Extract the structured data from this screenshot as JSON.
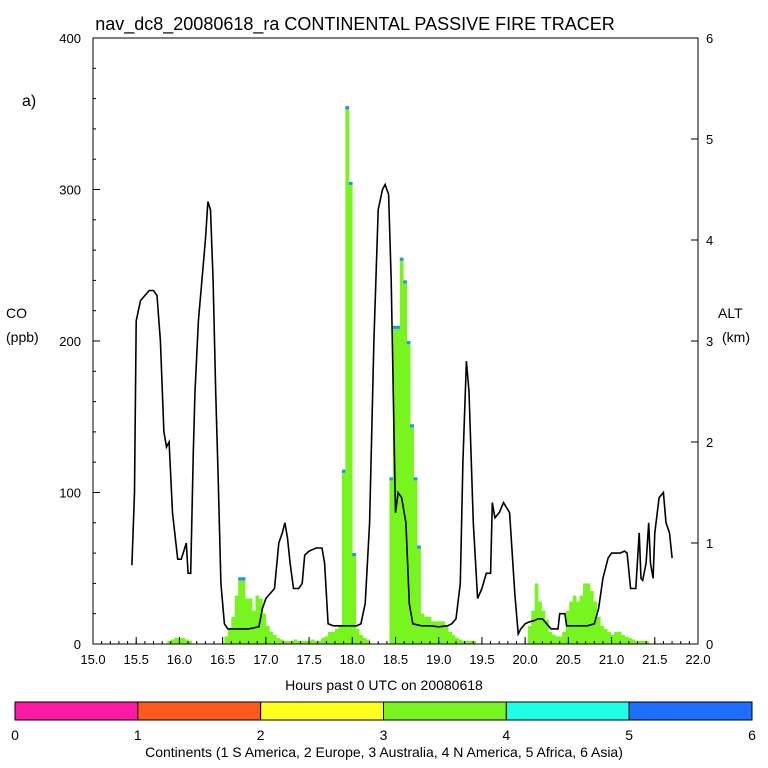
{
  "chart_data": {
    "type": "bar",
    "title": "nav_dc8_20080618_ra CONTINENTAL PASSIVE FIRE TRACER",
    "panel_label": "a)",
    "xlabel": "Hours past 0 UTC on 20080618",
    "ylabel_left_line1": "CO",
    "ylabel_left_line2": "(ppb)",
    "ylabel_right_line1": "ALT",
    "ylabel_right_line2": "(km)",
    "xlim": [
      15.0,
      22.0
    ],
    "ylim_left": [
      0,
      400
    ],
    "ylim_right": [
      0,
      6
    ],
    "x_ticks": [
      "15.0",
      "15.5",
      "16.0",
      "16.5",
      "17.0",
      "17.5",
      "18.0",
      "18.5",
      "19.0",
      "19.5",
      "20.0",
      "20.5",
      "21.0",
      "21.5",
      "22.0"
    ],
    "y_left_ticks": [
      "0",
      "100",
      "200",
      "300",
      "400"
    ],
    "y_right_ticks": [
      "0",
      "1",
      "2",
      "3",
      "4",
      "5",
      "6"
    ],
    "bar_width_hours": 0.04,
    "co_bars_x": [
      15.88,
      15.92,
      15.96,
      16.0,
      16.04,
      16.08,
      16.12,
      16.54,
      16.58,
      16.62,
      16.66,
      16.7,
      16.74,
      16.78,
      16.82,
      16.86,
      16.9,
      16.94,
      16.98,
      17.02,
      17.06,
      17.1,
      17.14,
      17.18,
      17.22,
      17.26,
      17.3,
      17.34,
      17.38,
      17.42,
      17.46,
      17.5,
      17.54,
      17.58,
      17.62,
      17.66,
      17.7,
      17.74,
      17.78,
      17.82,
      17.86,
      17.9,
      17.94,
      17.98,
      18.02,
      18.06,
      18.1,
      18.14,
      18.18,
      18.45,
      18.49,
      18.53,
      18.57,
      18.61,
      18.65,
      18.69,
      18.73,
      18.77,
      18.81,
      18.85,
      18.89,
      18.93,
      18.97,
      19.01,
      19.05,
      19.09,
      19.13,
      19.17,
      19.21,
      19.25,
      19.29,
      19.33,
      19.37,
      19.41,
      20.05,
      20.09,
      20.13,
      20.17,
      20.21,
      20.25,
      20.29,
      20.33,
      20.37,
      20.41,
      20.45,
      20.49,
      20.53,
      20.57,
      20.61,
      20.65,
      20.69,
      20.73,
      20.77,
      20.81,
      20.85,
      20.89,
      20.93,
      20.97,
      21.01,
      21.05,
      21.09,
      21.13,
      21.17,
      21.21,
      21.25,
      21.29,
      21.33,
      21.37,
      21.41
    ],
    "co_bars_y": [
      2,
      3,
      4,
      4,
      4,
      3,
      2,
      5,
      10,
      18,
      32,
      44,
      44,
      30,
      30,
      22,
      32,
      30,
      20,
      12,
      8,
      6,
      4,
      3,
      2,
      2,
      2,
      3,
      2,
      2,
      2,
      2,
      3,
      2,
      2,
      4,
      5,
      8,
      8,
      10,
      12,
      115,
      355,
      305,
      60,
      10,
      6,
      4,
      3,
      110,
      210,
      210,
      255,
      240,
      200,
      145,
      110,
      65,
      20,
      18,
      18,
      15,
      15,
      15,
      15,
      12,
      8,
      6,
      4,
      3,
      2,
      2,
      2,
      2,
      12,
      22,
      40,
      28,
      22,
      16,
      8,
      6,
      5,
      5,
      8,
      22,
      28,
      32,
      28,
      32,
      40,
      40,
      35,
      28,
      18,
      12,
      10,
      8,
      6,
      8,
      8,
      6,
      5,
      4,
      3,
      2,
      2,
      2,
      2
    ],
    "altitude_km": [
      [
        15.45,
        0.78
      ],
      [
        15.48,
        1.5
      ],
      [
        15.5,
        3.2
      ],
      [
        15.55,
        3.4
      ],
      [
        15.6,
        3.45
      ],
      [
        15.65,
        3.5
      ],
      [
        15.7,
        3.5
      ],
      [
        15.74,
        3.45
      ],
      [
        15.78,
        3.0
      ],
      [
        15.82,
        2.1
      ],
      [
        15.85,
        1.95
      ],
      [
        15.88,
        2.0
      ],
      [
        15.92,
        1.3
      ],
      [
        15.98,
        0.84
      ],
      [
        16.02,
        0.84
      ],
      [
        16.05,
        0.92
      ],
      [
        16.08,
        1.0
      ],
      [
        16.1,
        0.7
      ],
      [
        16.13,
        0.7
      ],
      [
        16.16,
        1.9
      ],
      [
        16.18,
        2.5
      ],
      [
        16.22,
        3.2
      ],
      [
        16.26,
        3.6
      ],
      [
        16.3,
        4.0
      ],
      [
        16.33,
        4.38
      ],
      [
        16.36,
        4.3
      ],
      [
        16.39,
        3.6
      ],
      [
        16.42,
        2.5
      ],
      [
        16.45,
        1.6
      ],
      [
        16.48,
        0.6
      ],
      [
        16.52,
        0.2
      ],
      [
        16.56,
        0.15
      ],
      [
        16.6,
        0.15
      ],
      [
        16.7,
        0.15
      ],
      [
        16.8,
        0.15
      ],
      [
        16.92,
        0.17
      ],
      [
        16.96,
        0.35
      ],
      [
        17.0,
        0.45
      ],
      [
        17.05,
        0.5
      ],
      [
        17.1,
        0.55
      ],
      [
        17.15,
        1.0
      ],
      [
        17.19,
        1.1
      ],
      [
        17.22,
        1.2
      ],
      [
        17.25,
        1.05
      ],
      [
        17.28,
        0.8
      ],
      [
        17.32,
        0.55
      ],
      [
        17.38,
        0.55
      ],
      [
        17.42,
        0.6
      ],
      [
        17.45,
        0.88
      ],
      [
        17.5,
        0.92
      ],
      [
        17.58,
        0.95
      ],
      [
        17.65,
        0.95
      ],
      [
        17.68,
        0.8
      ],
      [
        17.72,
        0.2
      ],
      [
        17.78,
        0.18
      ],
      [
        17.88,
        0.18
      ],
      [
        17.98,
        0.18
      ],
      [
        18.05,
        0.18
      ],
      [
        18.1,
        0.2
      ],
      [
        18.15,
        0.4
      ],
      [
        18.2,
        1.2
      ],
      [
        18.25,
        3.0
      ],
      [
        18.3,
        4.3
      ],
      [
        18.35,
        4.5
      ],
      [
        18.38,
        4.55
      ],
      [
        18.42,
        4.45
      ],
      [
        18.45,
        3.6
      ],
      [
        18.48,
        2.2
      ],
      [
        18.5,
        1.3
      ],
      [
        18.53,
        1.5
      ],
      [
        18.57,
        1.45
      ],
      [
        18.62,
        1.2
      ],
      [
        18.66,
        0.4
      ],
      [
        18.7,
        0.2
      ],
      [
        18.8,
        0.18
      ],
      [
        18.9,
        0.18
      ],
      [
        19.0,
        0.17
      ],
      [
        19.1,
        0.18
      ],
      [
        19.15,
        0.2
      ],
      [
        19.2,
        0.25
      ],
      [
        19.25,
        0.6
      ],
      [
        19.28,
        1.8
      ],
      [
        19.32,
        2.8
      ],
      [
        19.35,
        2.5
      ],
      [
        19.4,
        1.2
      ],
      [
        19.45,
        0.45
      ],
      [
        19.5,
        0.55
      ],
      [
        19.55,
        0.7
      ],
      [
        19.6,
        0.7
      ],
      [
        19.62,
        1.4
      ],
      [
        19.65,
        1.25
      ],
      [
        19.7,
        1.3
      ],
      [
        19.75,
        1.4
      ],
      [
        19.82,
        1.3
      ],
      [
        19.88,
        0.5
      ],
      [
        19.92,
        0.1
      ],
      [
        19.95,
        0.15
      ],
      [
        20.0,
        0.2
      ],
      [
        20.05,
        0.22
      ],
      [
        20.1,
        0.23
      ],
      [
        20.15,
        0.25
      ],
      [
        20.2,
        0.25
      ],
      [
        20.3,
        0.15
      ],
      [
        20.38,
        0.15
      ],
      [
        20.4,
        0.3
      ],
      [
        20.46,
        0.3
      ],
      [
        20.48,
        0.18
      ],
      [
        20.6,
        0.18
      ],
      [
        20.72,
        0.18
      ],
      [
        20.8,
        0.2
      ],
      [
        20.85,
        0.35
      ],
      [
        20.9,
        0.65
      ],
      [
        20.96,
        0.85
      ],
      [
        21.0,
        0.9
      ],
      [
        21.06,
        0.9
      ],
      [
        21.1,
        0.9
      ],
      [
        21.15,
        0.92
      ],
      [
        21.18,
        0.9
      ],
      [
        21.22,
        0.55
      ],
      [
        21.28,
        0.55
      ],
      [
        21.32,
        1.1
      ],
      [
        21.34,
        0.65
      ],
      [
        21.36,
        0.63
      ],
      [
        21.4,
        0.8
      ],
      [
        21.43,
        1.2
      ],
      [
        21.45,
        0.8
      ],
      [
        21.48,
        0.65
      ],
      [
        21.5,
        1.1
      ],
      [
        21.55,
        1.45
      ],
      [
        21.6,
        1.5
      ],
      [
        21.63,
        1.2
      ],
      [
        21.67,
        1.1
      ],
      [
        21.7,
        0.85
      ]
    ],
    "colorbar": {
      "label": "Continents (1 S America, 2 Europe, 3 Australia, 4 N America, 5 Africa, 6 Asia)",
      "ticks": [
        "0",
        "1",
        "2",
        "3",
        "4",
        "5",
        "6"
      ],
      "colors": [
        "#FF1AA5",
        "#FF5A1E",
        "#FFFF1E",
        "#78F51E",
        "#1EFFE6",
        "#1E6EFF"
      ]
    },
    "colors": {
      "bar_fill": "#78F51E",
      "bar_top": "#1E90FF",
      "altitude_line": "#000000",
      "background": "#ffffff"
    }
  }
}
